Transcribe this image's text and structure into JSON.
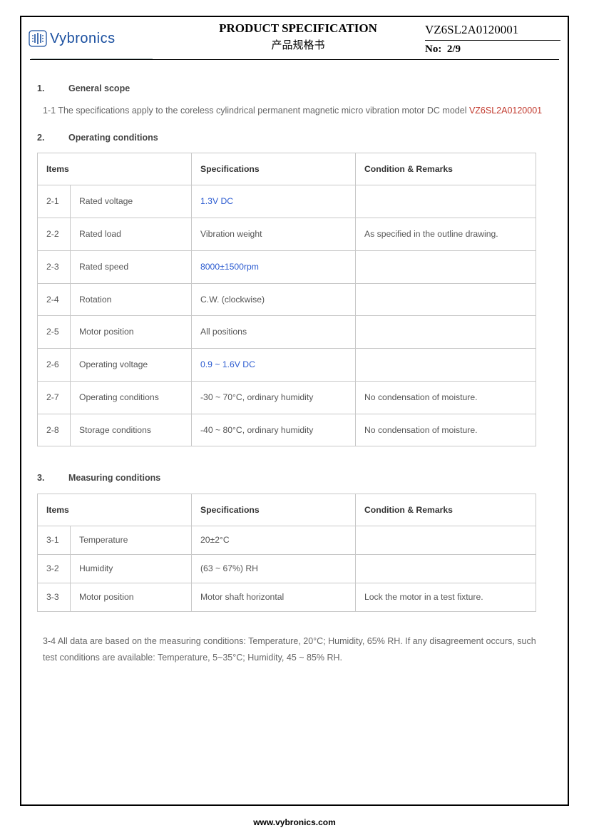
{
  "header": {
    "logo_text": "Vybronics",
    "title_en": "PRODUCT SPECIFICATION",
    "title_cn": "产品规格书",
    "doc_number": "VZ6SL2A0120001",
    "page_label": "No:",
    "page_value": "2/9"
  },
  "section1": {
    "num": "1.",
    "title": "General scope",
    "para_prefix": "1-1 The specifications apply to the coreless cylindrical permanent magnetic micro vibration motor DC model ",
    "model": "VZ6SL2A0120001"
  },
  "section2": {
    "num": "2.",
    "title": "Operating conditions",
    "headers": {
      "items": "Items",
      "spec": "Specifications",
      "cond": "Condition & Remarks"
    },
    "rows": [
      {
        "idx": "2-1",
        "item": "Rated voltage",
        "spec": "1.3V DC",
        "spec_blue": true,
        "cond": ""
      },
      {
        "idx": "2-2",
        "item": "Rated load",
        "spec": "Vibration weight",
        "spec_blue": false,
        "cond": "As specified in the outline drawing."
      },
      {
        "idx": "2-3",
        "item": "Rated speed",
        "spec": "8000±1500rpm",
        "spec_blue": true,
        "cond": ""
      },
      {
        "idx": "2-4",
        "item": "Rotation",
        "spec": "C.W. (clockwise)",
        "spec_blue": false,
        "cond": ""
      },
      {
        "idx": "2-5",
        "item": "Motor position",
        "spec": "All positions",
        "spec_blue": false,
        "cond": ""
      },
      {
        "idx": "2-6",
        "item": "Operating voltage",
        "spec": "0.9 ~ 1.6V DC",
        "spec_blue": true,
        "cond": ""
      },
      {
        "idx": "2-7",
        "item": "Operating conditions",
        "spec": "-30 ~ 70°C, ordinary humidity",
        "spec_blue": false,
        "cond": "No condensation of moisture."
      },
      {
        "idx": "2-8",
        "item": "Storage conditions",
        "spec": "-40 ~ 80°C, ordinary humidity",
        "spec_blue": false,
        "cond": "No condensation of moisture."
      }
    ]
  },
  "section3": {
    "num": "3.",
    "title": "Measuring conditions",
    "headers": {
      "items": "Items",
      "spec": "Specifications",
      "cond": "Condition & Remarks"
    },
    "rows": [
      {
        "idx": "3-1",
        "item": "Temperature",
        "spec": "20±2°C",
        "cond": ""
      },
      {
        "idx": "3-2",
        "item": "Humidity",
        "spec": "(63 ~ 67%) RH",
        "cond": ""
      },
      {
        "idx": "3-3",
        "item": "Motor position",
        "spec": "Motor shaft horizontal",
        "cond": "Lock the motor in a test fixture."
      }
    ],
    "note": "3-4 All data are based on the measuring conditions: Temperature, 20°C; Humidity, 65% RH. If any disagreement occurs, such test conditions are available: Temperature, 5~35°C; Humidity, 45 ~ 85% RH."
  },
  "footer": {
    "url": "www.vybronics.com"
  },
  "colors": {
    "brand_blue": "#1b50a0",
    "value_blue": "#2a5ad0",
    "model_red": "#c23a2e",
    "text_gray": "#555555",
    "border_gray": "#c8c8c8"
  }
}
